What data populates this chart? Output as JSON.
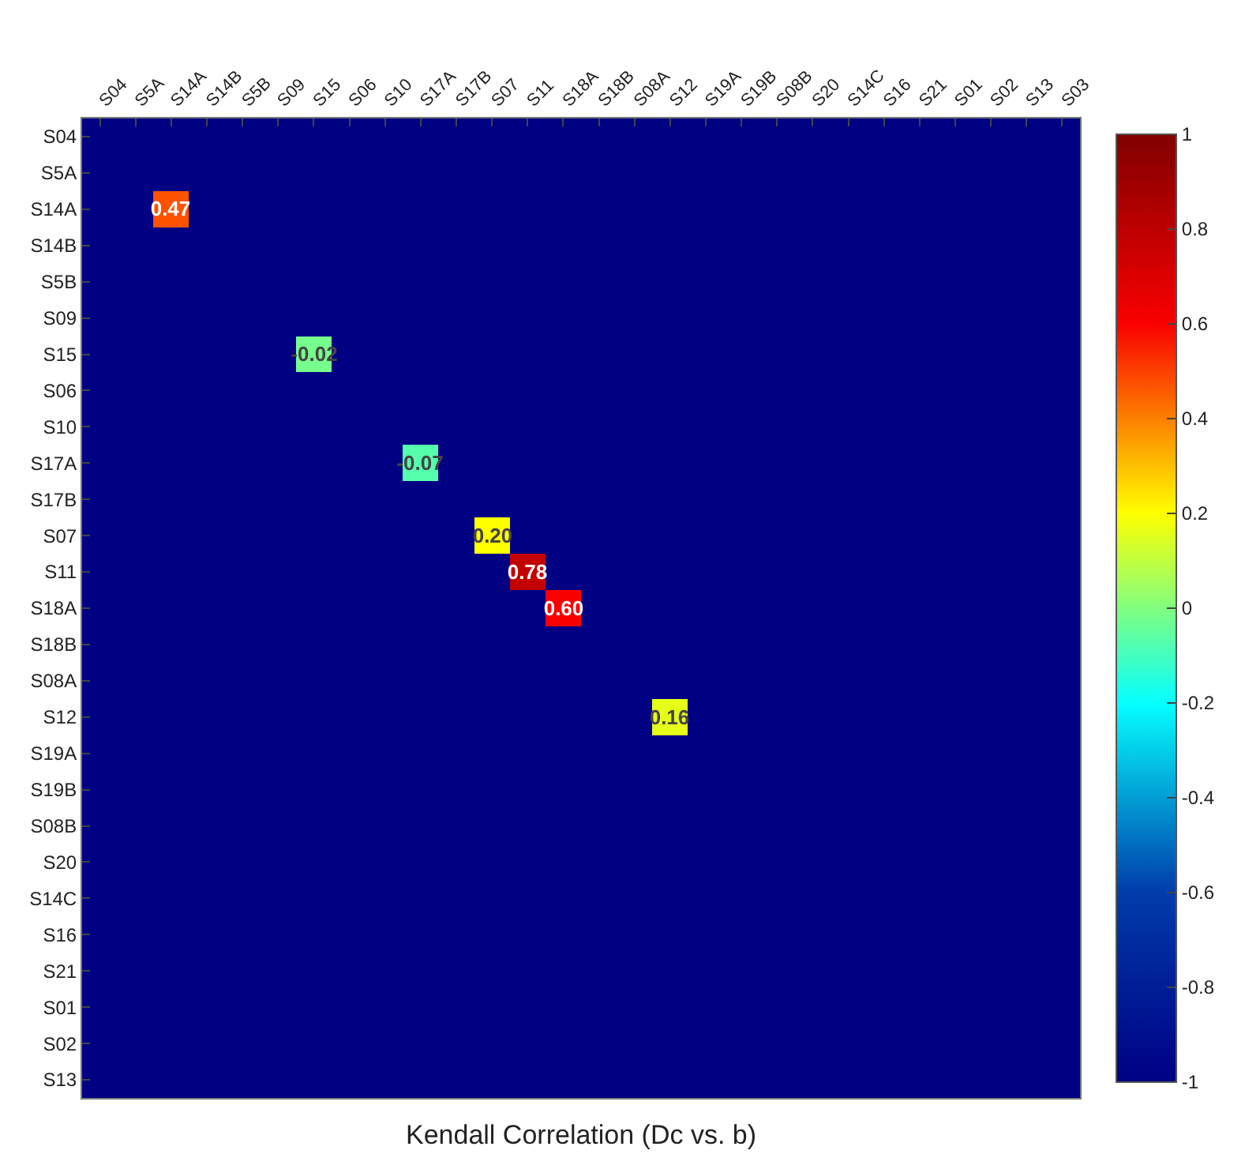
{
  "chart_data": {
    "type": "heatmap",
    "xlabel": "Kendall Correlation (Dc vs. b)",
    "categories": [
      "S04",
      "S5A",
      "S14A",
      "S14B",
      "S5B",
      "S09",
      "S15",
      "S06",
      "S10",
      "S17A",
      "S17B",
      "S07",
      "S11",
      "S18A",
      "S18B",
      "S08A",
      "S12",
      "S19A",
      "S19B",
      "S08B",
      "S20",
      "S14C",
      "S16",
      "S21",
      "S01",
      "S02",
      "S13",
      "S03"
    ],
    "y_categories": [
      "S04",
      "S5A",
      "S14A",
      "S14B",
      "S5B",
      "S09",
      "S15",
      "S06",
      "S10",
      "S17A",
      "S17B",
      "S07",
      "S11",
      "S18A",
      "S18B",
      "S08A",
      "S12",
      "S19A",
      "S19B",
      "S08B",
      "S20",
      "S14C",
      "S16",
      "S21",
      "S01",
      "S02",
      "S13"
    ],
    "cells": [
      [
        -1,
        -1,
        -1,
        -1,
        -1,
        -1,
        -1,
        -1,
        -1,
        -1,
        -1,
        -1,
        -1,
        -1,
        -1,
        -1,
        -1,
        -1,
        -1,
        -1,
        -1,
        -1,
        -1,
        -1,
        -1,
        -1,
        -1,
        -1
      ],
      [
        -1,
        -1,
        -1,
        -1,
        -1,
        -1,
        -1,
        -1,
        -1,
        -1,
        -1,
        -1,
        -1,
        -1,
        -1,
        -1,
        -1,
        -1,
        -1,
        -1,
        -1,
        -1,
        -1,
        -1,
        -1,
        -1,
        -1,
        -1
      ],
      [
        -1,
        -1,
        0.47,
        -1,
        -1,
        -1,
        -1,
        -1,
        -1,
        -1,
        -1,
        -1,
        -1,
        -1,
        -1,
        -1,
        -1,
        -1,
        -1,
        -1,
        -1,
        -1,
        -1,
        -1,
        -1,
        -1,
        -1,
        -1
      ],
      [
        -1,
        -1,
        -1,
        -1,
        -1,
        -1,
        -1,
        -1,
        -1,
        -1,
        -1,
        -1,
        -1,
        -1,
        -1,
        -1,
        -1,
        -1,
        -1,
        -1,
        -1,
        -1,
        -1,
        -1,
        -1,
        -1,
        -1,
        -1
      ],
      [
        -1,
        -1,
        -1,
        -1,
        -1,
        -1,
        -1,
        -1,
        -1,
        -1,
        -1,
        -1,
        -1,
        -1,
        -1,
        -1,
        -1,
        -1,
        -1,
        -1,
        -1,
        -1,
        -1,
        -1,
        -1,
        -1,
        -1,
        -1
      ],
      [
        -1,
        -1,
        -1,
        -1,
        -1,
        -1,
        -1,
        -1,
        -1,
        -1,
        -1,
        -1,
        -1,
        -1,
        -1,
        -1,
        -1,
        -1,
        -1,
        -1,
        -1,
        -1,
        -1,
        -1,
        -1,
        -1,
        -1,
        -1
      ],
      [
        -1,
        -1,
        -1,
        -1,
        -1,
        -1,
        -0.02,
        -1,
        -1,
        -1,
        -1,
        -1,
        -1,
        -1,
        -1,
        -1,
        -1,
        -1,
        -1,
        -1,
        -1,
        -1,
        -1,
        -1,
        -1,
        -1,
        -1,
        -1
      ],
      [
        -1,
        -1,
        -1,
        -1,
        -1,
        -1,
        -1,
        -1,
        -1,
        -1,
        -1,
        -1,
        -1,
        -1,
        -1,
        -1,
        -1,
        -1,
        -1,
        -1,
        -1,
        -1,
        -1,
        -1,
        -1,
        -1,
        -1,
        -1
      ],
      [
        -1,
        -1,
        -1,
        -1,
        -1,
        -1,
        -1,
        -1,
        -1,
        -1,
        -1,
        -1,
        -1,
        -1,
        -1,
        -1,
        -1,
        -1,
        -1,
        -1,
        -1,
        -1,
        -1,
        -1,
        -1,
        -1,
        -1,
        -1
      ],
      [
        -1,
        -1,
        -1,
        -1,
        -1,
        -1,
        -1,
        -1,
        -1,
        -0.07,
        -1,
        -1,
        -1,
        -1,
        -1,
        -1,
        -1,
        -1,
        -1,
        -1,
        -1,
        -1,
        -1,
        -1,
        -1,
        -1,
        -1,
        -1
      ],
      [
        -1,
        -1,
        -1,
        -1,
        -1,
        -1,
        -1,
        -1,
        -1,
        -1,
        -1,
        -1,
        -1,
        -1,
        -1,
        -1,
        -1,
        -1,
        -1,
        -1,
        -1,
        -1,
        -1,
        -1,
        -1,
        -1,
        -1,
        -1
      ],
      [
        -1,
        -1,
        -1,
        -1,
        -1,
        -1,
        -1,
        -1,
        -1,
        -1,
        -1,
        0.2,
        -1,
        -1,
        -1,
        -1,
        -1,
        -1,
        -1,
        -1,
        -1,
        -1,
        -1,
        -1,
        -1,
        -1,
        -1,
        -1
      ],
      [
        -1,
        -1,
        -1,
        -1,
        -1,
        -1,
        -1,
        -1,
        -1,
        -1,
        -1,
        -1,
        0.78,
        -1,
        -1,
        -1,
        -1,
        -1,
        -1,
        -1,
        -1,
        -1,
        -1,
        -1,
        -1,
        -1,
        -1,
        -1
      ],
      [
        -1,
        -1,
        -1,
        -1,
        -1,
        -1,
        -1,
        -1,
        -1,
        -1,
        -1,
        -1,
        -1,
        0.6,
        -1,
        -1,
        -1,
        -1,
        -1,
        -1,
        -1,
        -1,
        -1,
        -1,
        -1,
        -1,
        -1,
        -1
      ],
      [
        -1,
        -1,
        -1,
        -1,
        -1,
        -1,
        -1,
        -1,
        -1,
        -1,
        -1,
        -1,
        -1,
        -1,
        -1,
        -1,
        -1,
        -1,
        -1,
        -1,
        -1,
        -1,
        -1,
        -1,
        -1,
        -1,
        -1,
        -1
      ],
      [
        -1,
        -1,
        -1,
        -1,
        -1,
        -1,
        -1,
        -1,
        -1,
        -1,
        -1,
        -1,
        -1,
        -1,
        -1,
        -1,
        -1,
        -1,
        -1,
        -1,
        -1,
        -1,
        -1,
        -1,
        -1,
        -1,
        -1,
        -1
      ],
      [
        -1,
        -1,
        -1,
        -1,
        -1,
        -1,
        -1,
        -1,
        -1,
        -1,
        -1,
        -1,
        -1,
        -1,
        -1,
        -1,
        0.16,
        -1,
        -1,
        -1,
        -1,
        -1,
        -1,
        -1,
        -1,
        -1,
        -1,
        -1
      ],
      [
        -1,
        -1,
        -1,
        -1,
        -1,
        -1,
        -1,
        -1,
        -1,
        -1,
        -1,
        -1,
        -1,
        -1,
        -1,
        -1,
        -1,
        -1,
        -1,
        -1,
        -1,
        -1,
        -1,
        -1,
        -1,
        -1,
        -1,
        -1
      ],
      [
        -1,
        -1,
        -1,
        -1,
        -1,
        -1,
        -1,
        -1,
        -1,
        -1,
        -1,
        -1,
        -1,
        -1,
        -1,
        -1,
        -1,
        -1,
        -1,
        -1,
        -1,
        -1,
        -1,
        -1,
        -1,
        -1,
        -1,
        -1
      ],
      [
        -1,
        -1,
        -1,
        -1,
        -1,
        -1,
        -1,
        -1,
        -1,
        -1,
        -1,
        -1,
        -1,
        -1,
        -1,
        -1,
        -1,
        -1,
        -1,
        -1,
        -1,
        -1,
        -1,
        -1,
        -1,
        -1,
        -1,
        -1
      ],
      [
        -1,
        -1,
        -1,
        -1,
        -1,
        -1,
        -1,
        -1,
        -1,
        -1,
        -1,
        -1,
        -1,
        -1,
        -1,
        -1,
        -1,
        -1,
        -1,
        -1,
        -1,
        -1,
        -1,
        -1,
        -1,
        -1,
        -1,
        -1
      ],
      [
        -1,
        -1,
        -1,
        -1,
        -1,
        -1,
        -1,
        -1,
        -1,
        -1,
        -1,
        -1,
        -1,
        -1,
        -1,
        -1,
        -1,
        -1,
        -1,
        -1,
        -1,
        -1,
        -1,
        -1,
        -1,
        -1,
        -1,
        -1
      ],
      [
        -1,
        -1,
        -1,
        -1,
        -1,
        -1,
        -1,
        -1,
        -1,
        -1,
        -1,
        -1,
        -1,
        -1,
        -1,
        -1,
        -1,
        -1,
        -1,
        -1,
        -1,
        -1,
        -1,
        -1,
        -1,
        -1,
        -1,
        -1
      ],
      [
        -1,
        -1,
        -1,
        -1,
        -1,
        -1,
        -1,
        -1,
        -1,
        -1,
        -1,
        -1,
        -1,
        -1,
        -1,
        -1,
        -1,
        -1,
        -1,
        -1,
        -1,
        -1,
        -1,
        -1,
        -1,
        -1,
        -1,
        -1
      ],
      [
        -1,
        -1,
        -1,
        -1,
        -1,
        -1,
        -1,
        -1,
        -1,
        -1,
        -1,
        -1,
        -1,
        -1,
        -1,
        -1,
        -1,
        -1,
        -1,
        -1,
        -1,
        -1,
        -1,
        -1,
        -1,
        -1,
        -1,
        -1
      ],
      [
        -1,
        -1,
        -1,
        -1,
        -1,
        -1,
        -1,
        -1,
        -1,
        -1,
        -1,
        -1,
        -1,
        -1,
        -1,
        -1,
        -1,
        -1,
        -1,
        -1,
        -1,
        -1,
        -1,
        -1,
        -1,
        -1,
        -1,
        -1
      ],
      [
        -1,
        -1,
        -1,
        -1,
        -1,
        -1,
        -1,
        -1,
        -1,
        -1,
        -1,
        -1,
        -1,
        -1,
        -1,
        -1,
        -1,
        -1,
        -1,
        -1,
        -1,
        -1,
        -1,
        -1,
        -1,
        -1,
        -1,
        -1
      ]
    ],
    "clim": [
      -1,
      1
    ],
    "cticks": [
      -1,
      {
        "value": -0.8,
        "label": "-0.8"
      },
      {
        "value": -0.6,
        "label": "-0.6"
      },
      {
        "value": -0.4,
        "label": "-0.4"
      },
      {
        "value": -0.2,
        "label": "-0.2"
      },
      0,
      {
        "value": 0.2,
        "label": "0.2"
      },
      {
        "value": 0.4,
        "label": "0.4"
      },
      {
        "value": 0.6,
        "label": "0.6"
      },
      {
        "value": 0.8,
        "label": "0.8"
      },
      1
    ],
    "cell_labels": [
      [
        null,
        null,
        null,
        null,
        null,
        null,
        null,
        null,
        null,
        null,
        null,
        null,
        null,
        null,
        null,
        null,
        null,
        null,
        null,
        null,
        null,
        null,
        null,
        null,
        null,
        null,
        null,
        null
      ],
      [
        null,
        null,
        null,
        null,
        null,
        null,
        null,
        null,
        null,
        null,
        null,
        null,
        null,
        null,
        null,
        null,
        null,
        null,
        null,
        null,
        null,
        null,
        null,
        null,
        null,
        null,
        null,
        null
      ],
      [
        null,
        null,
        "0.47",
        null,
        null,
        null,
        null,
        null,
        null,
        null,
        null,
        null,
        null,
        null,
        null,
        null,
        null,
        null,
        null,
        null,
        null,
        null,
        null,
        null,
        null,
        null,
        null,
        null
      ],
      [
        null,
        null,
        null,
        null,
        null,
        null,
        null,
        null,
        null,
        null,
        null,
        null,
        null,
        null,
        null,
        null,
        null,
        null,
        null,
        null,
        null,
        null,
        null,
        null,
        null,
        null,
        null,
        null
      ],
      [
        null,
        null,
        null,
        null,
        null,
        null,
        null,
        null,
        null,
        null,
        null,
        null,
        null,
        null,
        null,
        null,
        null,
        null,
        null,
        null,
        null,
        null,
        null,
        null,
        null,
        null,
        null,
        null
      ],
      [
        null,
        null,
        null,
        null,
        null,
        null,
        null,
        null,
        null,
        null,
        null,
        null,
        null,
        null,
        null,
        null,
        null,
        null,
        null,
        null,
        null,
        null,
        null,
        null,
        null,
        null,
        null,
        null
      ],
      [
        null,
        null,
        null,
        null,
        null,
        null,
        "-0.02",
        null,
        null,
        null,
        null,
        null,
        null,
        null,
        null,
        null,
        null,
        null,
        null,
        null,
        null,
        null,
        null,
        null,
        null,
        null,
        null,
        null
      ],
      [
        null,
        null,
        null,
        null,
        null,
        null,
        null,
        null,
        null,
        null,
        null,
        null,
        null,
        null,
        null,
        null,
        null,
        null,
        null,
        null,
        null,
        null,
        null,
        null,
        null,
        null,
        null,
        null
      ],
      [
        null,
        null,
        null,
        null,
        null,
        null,
        null,
        null,
        null,
        null,
        null,
        null,
        null,
        null,
        null,
        null,
        null,
        null,
        null,
        null,
        null,
        null,
        null,
        null,
        null,
        null,
        null,
        null
      ],
      [
        null,
        null,
        null,
        null,
        null,
        null,
        null,
        null,
        null,
        "-0.07",
        null,
        null,
        null,
        null,
        null,
        null,
        null,
        null,
        null,
        null,
        null,
        null,
        null,
        null,
        null,
        null,
        null,
        null
      ],
      [
        null,
        null,
        null,
        null,
        null,
        null,
        null,
        null,
        null,
        null,
        null,
        null,
        null,
        null,
        null,
        null,
        null,
        null,
        null,
        null,
        null,
        null,
        null,
        null,
        null,
        null,
        null,
        null
      ],
      [
        null,
        null,
        null,
        null,
        null,
        null,
        null,
        null,
        null,
        null,
        null,
        "0.20",
        null,
        null,
        null,
        null,
        null,
        null,
        null,
        null,
        null,
        null,
        null,
        null,
        null,
        null,
        null,
        null
      ],
      [
        null,
        null,
        null,
        null,
        null,
        null,
        null,
        null,
        null,
        null,
        null,
        null,
        "0.78",
        null,
        null,
        null,
        null,
        null,
        null,
        null,
        null,
        null,
        null,
        null,
        null,
        null,
        null,
        null
      ],
      [
        null,
        null,
        null,
        null,
        null,
        null,
        null,
        null,
        null,
        null,
        null,
        null,
        null,
        "0.60",
        null,
        null,
        null,
        null,
        null,
        null,
        null,
        null,
        null,
        null,
        null,
        null,
        null,
        null
      ],
      [
        null,
        null,
        null,
        null,
        null,
        null,
        null,
        null,
        null,
        null,
        null,
        null,
        null,
        null,
        null,
        null,
        null,
        null,
        null,
        null,
        null,
        null,
        null,
        null,
        null,
        null,
        null,
        null
      ],
      [
        null,
        null,
        null,
        null,
        null,
        null,
        null,
        null,
        null,
        null,
        null,
        null,
        null,
        null,
        null,
        null,
        null,
        null,
        null,
        null,
        null,
        null,
        null,
        null,
        null,
        null,
        null,
        null
      ],
      [
        null,
        null,
        null,
        null,
        null,
        null,
        null,
        null,
        null,
        null,
        null,
        null,
        null,
        null,
        null,
        null,
        "0.16",
        null,
        null,
        null,
        null,
        null,
        null,
        null,
        null,
        null,
        null,
        null
      ],
      [
        null,
        null,
        null,
        null,
        null,
        null,
        null,
        null,
        null,
        null,
        null,
        null,
        null,
        null,
        null,
        null,
        null,
        null,
        null,
        null,
        null,
        null,
        null,
        null,
        null,
        null,
        null,
        null
      ],
      [
        null,
        null,
        null,
        null,
        null,
        null,
        null,
        null,
        null,
        null,
        null,
        null,
        null,
        null,
        null,
        null,
        null,
        null,
        null,
        null,
        null,
        null,
        null,
        null,
        null,
        null,
        null,
        null
      ],
      [
        null,
        null,
        null,
        null,
        null,
        null,
        null,
        null,
        null,
        null,
        null,
        null,
        null,
        null,
        null,
        null,
        null,
        null,
        null,
        null,
        null,
        null,
        null,
        null,
        null,
        null,
        null,
        null
      ],
      [
        null,
        null,
        null,
        null,
        null,
        null,
        null,
        null,
        null,
        null,
        null,
        null,
        null,
        null,
        null,
        null,
        null,
        null,
        null,
        null,
        null,
        null,
        null,
        null,
        null,
        null,
        null,
        null
      ],
      [
        null,
        null,
        null,
        null,
        null,
        null,
        null,
        null,
        null,
        null,
        null,
        null,
        null,
        null,
        null,
        null,
        null,
        null,
        null,
        null,
        null,
        null,
        null,
        null,
        null,
        null,
        null,
        null
      ],
      [
        null,
        null,
        null,
        null,
        null,
        null,
        null,
        null,
        null,
        null,
        null,
        null,
        null,
        null,
        null,
        null,
        null,
        null,
        null,
        null,
        null,
        null,
        null,
        null,
        null,
        null,
        null,
        null
      ],
      [
        null,
        null,
        null,
        null,
        null,
        null,
        null,
        null,
        null,
        null,
        null,
        null,
        null,
        null,
        null,
        null,
        null,
        null,
        null,
        null,
        null,
        null,
        null,
        null,
        null,
        null,
        null,
        null
      ],
      [
        null,
        null,
        null,
        null,
        null,
        null,
        null,
        null,
        null,
        null,
        null,
        null,
        null,
        null,
        null,
        null,
        null,
        null,
        null,
        null,
        null,
        null,
        null,
        null,
        null,
        null,
        null,
        null
      ],
      [
        null,
        null,
        null,
        null,
        null,
        null,
        null,
        null,
        null,
        null,
        null,
        null,
        null,
        null,
        null,
        null,
        null,
        null,
        null,
        null,
        null,
        null,
        null,
        null,
        null,
        null,
        null,
        null
      ],
      [
        null,
        null,
        null,
        null,
        null,
        null,
        null,
        null,
        null,
        null,
        null,
        null,
        null,
        null,
        null,
        null,
        null,
        null,
        null,
        null,
        null,
        null,
        null,
        null,
        null,
        null,
        null,
        null
      ]
    ]
  }
}
